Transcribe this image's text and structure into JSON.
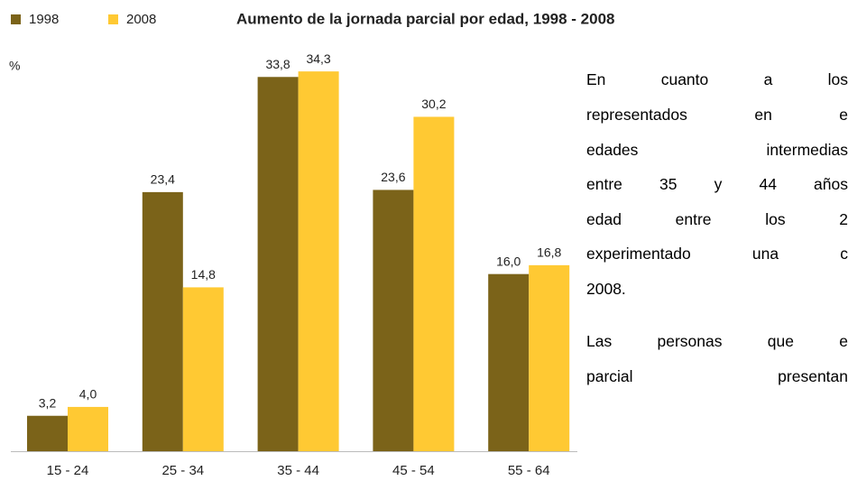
{
  "chart_data": {
    "type": "bar",
    "title": "Aumento de la jornada parcial por edad, 1998 - 2008",
    "y_label": "%",
    "categories": [
      "15 - 24",
      "25 - 34",
      "35 - 44",
      "45 - 54",
      "55 - 64"
    ],
    "series": [
      {
        "name": "1998",
        "color": "#7b6319",
        "values": [
          3.2,
          23.4,
          33.8,
          23.6,
          16.0
        ],
        "value_labels": [
          "3,2",
          "23,4",
          "33,8",
          "23,6",
          "16,0"
        ]
      },
      {
        "name": "2008",
        "color": "#ffc933",
        "values": [
          4.0,
          14.8,
          34.3,
          30.2,
          16.8
        ],
        "value_labels": [
          "4,0",
          "14,8",
          "34,3",
          "30,2",
          "16,8"
        ]
      }
    ]
  },
  "text": {
    "paragraphs": [
      [
        "En cuanto a los",
        "representados en e",
        "edades intermedias",
        "entre 35 y 44 años",
        "edad entre los 2",
        "experimentado una c",
        "2008."
      ],
      [
        "Las personas que e",
        "parcial presentan"
      ]
    ]
  }
}
